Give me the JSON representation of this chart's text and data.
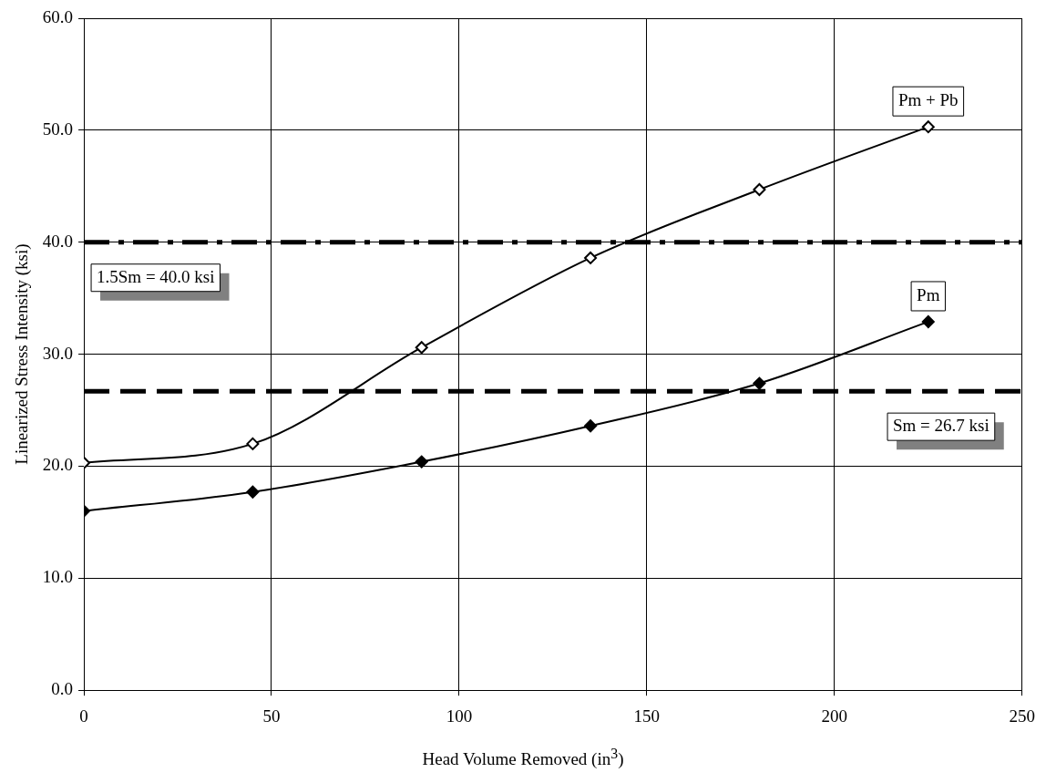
{
  "chart_data": {
    "type": "line",
    "xlabel": "Head Volume Removed (in$^{3}$)",
    "ylabel": "Linearized Stress Intensity (ksi)",
    "x": [
      0,
      45,
      90,
      135,
      180,
      225
    ],
    "series": [
      {
        "name": "Pm + Pb",
        "color": "#000000",
        "values": [
          20.3,
          22.0,
          30.6,
          38.6,
          44.7,
          50.3
        ]
      },
      {
        "name": "Pm",
        "color": "#000000",
        "values": [
          16.0,
          17.7,
          20.4,
          23.6,
          27.4,
          32.9
        ]
      }
    ],
    "xlim": [
      0,
      250
    ],
    "xticks": [
      0,
      50,
      100,
      150,
      200,
      250
    ],
    "ylim": [
      0,
      60
    ],
    "yticks": [
      {
        "value": 0,
        "label": "0.0"
      },
      {
        "value": 10,
        "label": "10.0"
      },
      {
        "value": 20,
        "label": "20.0"
      },
      {
        "value": 30,
        "label": "30.0"
      },
      {
        "value": 40,
        "label": "40.0"
      },
      {
        "value": 50,
        "label": "50.0"
      },
      {
        "value": 60,
        "label": "60.0"
      }
    ],
    "ref_lines": [
      {
        "axis": "y",
        "value": 40,
        "label": "1.5Sm = 40.0 ksi",
        "line_style": "dashdot",
        "color": "#000000"
      },
      {
        "axis": "y",
        "value": 26.7,
        "label": "Sm = 26.7 ksi",
        "line_style": "dashed",
        "color": "#000000"
      }
    ],
    "grid": true,
    "legend": false,
    "marker": "diamond",
    "line_style": "solid"
  }
}
